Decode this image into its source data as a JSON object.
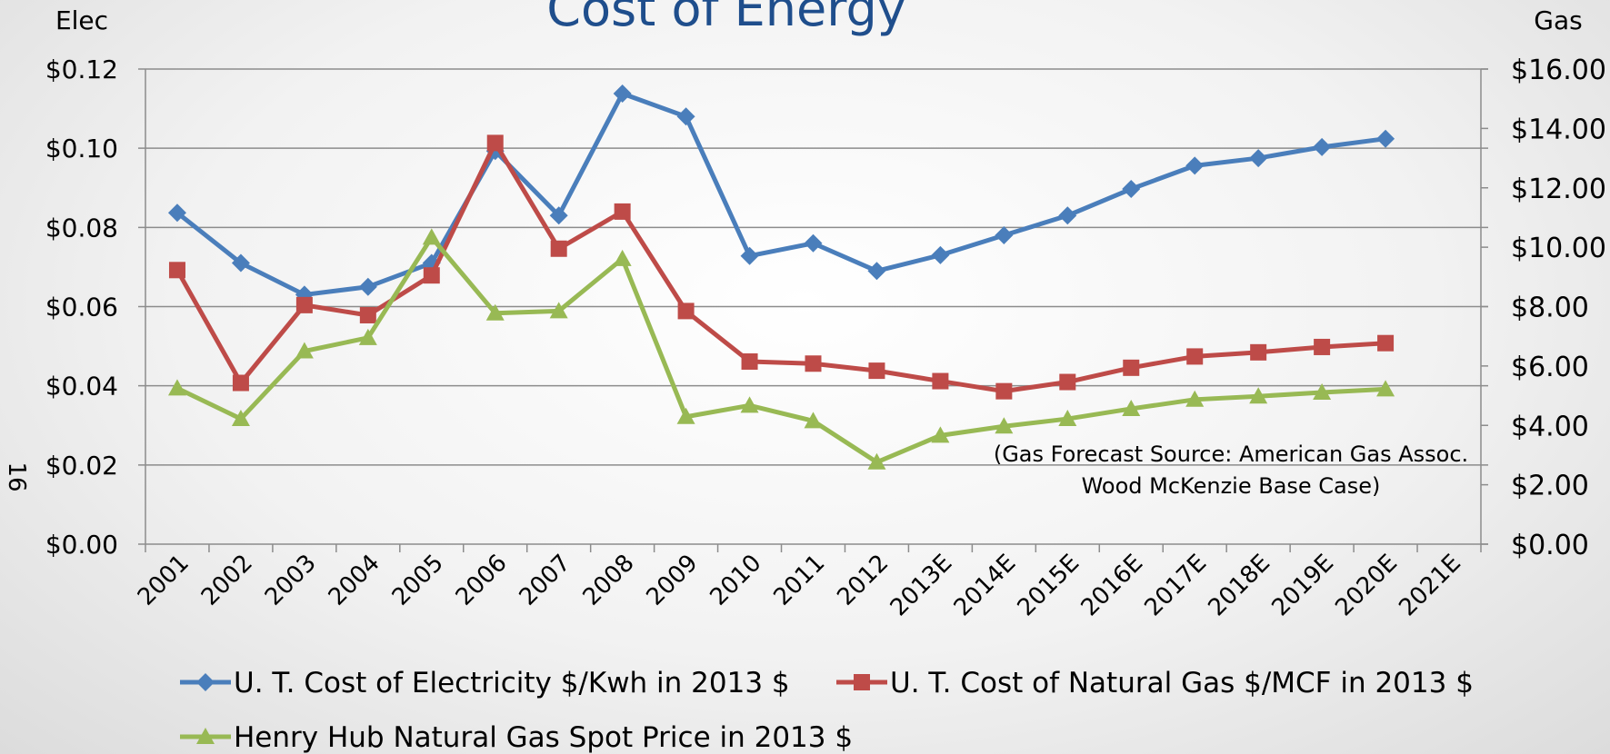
{
  "slide_number": "16",
  "chart_data": {
    "type": "line",
    "title": "Cost of Energy",
    "y_label": "Elec",
    "y2_label": "Gas",
    "annotation": [
      "(Gas Forecast Source: American Gas Assoc.",
      "Wood McKenzie Base Case)"
    ],
    "categories": [
      "2001",
      "2002",
      "2003",
      "2004",
      "2005",
      "2006",
      "2007",
      "2008",
      "2009",
      "2010",
      "2011",
      "2012",
      "2013E",
      "2014E",
      "2015E",
      "2016E",
      "2017E",
      "2018E",
      "2019E",
      "2020E",
      "2021E"
    ],
    "ylim": [
      0,
      0.12
    ],
    "yticks": [
      {
        "value": 0,
        "label": "$0.00"
      },
      {
        "value": 0.02,
        "label": "$0.02"
      },
      {
        "value": 0.04,
        "label": "$0.04"
      },
      {
        "value": 0.06,
        "label": "$0.06"
      },
      {
        "value": 0.08,
        "label": "$0.08"
      },
      {
        "value": 0.1,
        "label": "$0.10"
      },
      {
        "value": 0.12,
        "label": "$0.12"
      }
    ],
    "y2lim": [
      0,
      16
    ],
    "y2ticks": [
      {
        "value": 0,
        "label": "$0.00"
      },
      {
        "value": 2,
        "label": "$2.00"
      },
      {
        "value": 4,
        "label": "$4.00"
      },
      {
        "value": 6,
        "label": "$6.00"
      },
      {
        "value": 8,
        "label": "$8.00"
      },
      {
        "value": 10,
        "label": "$10.00"
      },
      {
        "value": 12,
        "label": "$12.00"
      },
      {
        "value": 14,
        "label": "$14.00"
      },
      {
        "value": 16,
        "label": "$16.00"
      }
    ],
    "grid": true,
    "legend": "bottom",
    "series": [
      {
        "name": "U. T. Cost of Electricity $/Kwh in 2013 $",
        "color": "#4a7ebb",
        "marker": "diamond",
        "axis": "y",
        "values": [
          0.0837,
          0.071,
          0.063,
          0.065,
          0.071,
          0.0993,
          0.083,
          0.1138,
          0.108,
          0.0728,
          0.076,
          0.069,
          0.073,
          0.078,
          0.083,
          0.0897,
          0.0956,
          0.0975,
          0.1003,
          0.1024,
          null
        ]
      },
      {
        "name": "U. T. Cost of Natural Gas $/MCF in 2013 $",
        "color": "#be4b48",
        "marker": "square",
        "axis": "y2",
        "values": [
          9.23,
          5.43,
          8.05,
          7.71,
          9.05,
          13.51,
          9.95,
          11.2,
          7.85,
          6.15,
          6.08,
          5.84,
          5.49,
          5.15,
          5.46,
          5.94,
          6.32,
          6.46,
          6.64,
          6.77,
          null
        ]
      },
      {
        "name": "Henry Hub Natural Gas Spot Price in 2013 $",
        "color": "#98b954",
        "marker": "triangle",
        "axis": "y2",
        "values": [
          5.25,
          4.22,
          6.5,
          6.95,
          10.33,
          7.78,
          7.85,
          9.61,
          4.29,
          4.67,
          4.15,
          2.76,
          3.66,
          3.97,
          4.22,
          4.56,
          4.87,
          4.98,
          5.11,
          5.22,
          null
        ]
      }
    ]
  }
}
